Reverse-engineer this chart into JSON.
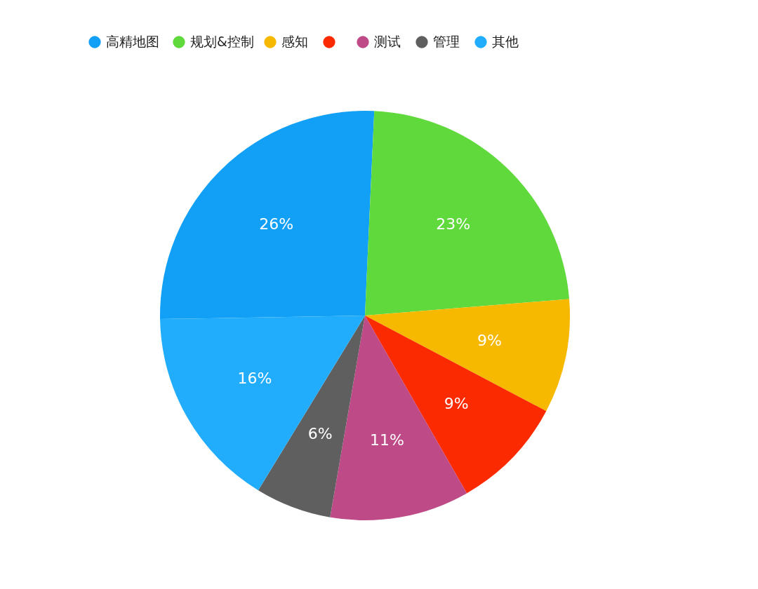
{
  "chart_data": {
    "type": "pie",
    "categories": [
      "高精地图",
      "规划&控制",
      "感知",
      null,
      "测试",
      "管理",
      "其他"
    ],
    "values": [
      26,
      23,
      9,
      9,
      11,
      6,
      16
    ],
    "colors": [
      "#12a0f6",
      "#5fd93b",
      "#f7b900",
      "#fb2a00",
      "#be4a87",
      "#5f5f5f",
      "#22adfc"
    ],
    "value_labels": [
      "26%",
      "23%",
      "9%",
      "9%",
      "11%",
      "6%",
      "16%"
    ],
    "legend": "top"
  }
}
